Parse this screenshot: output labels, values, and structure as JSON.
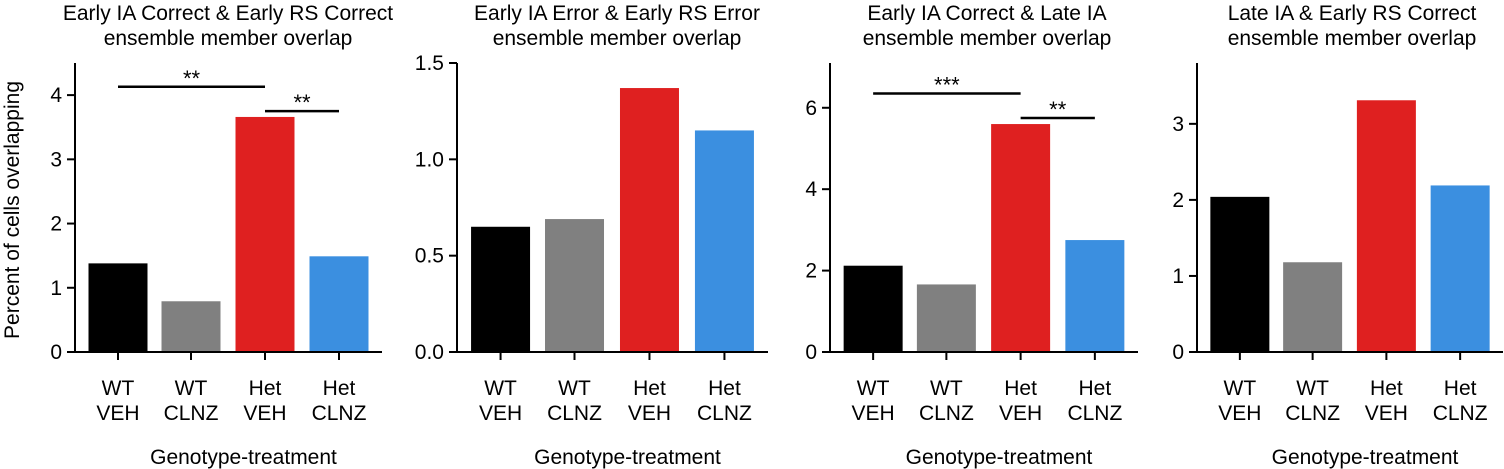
{
  "shared_ylabel": "Percent of cells overlapping",
  "chart_data": [
    {
      "type": "bar",
      "title": [
        "Early IA Correct & Early RS Correct",
        "ensemble member overlap"
      ],
      "xlabel": "Genotype-treatment",
      "categories": [
        [
          "WT",
          "VEH"
        ],
        [
          "WT",
          "CLNZ"
        ],
        [
          "Het",
          "VEH"
        ],
        [
          "Het",
          "CLNZ"
        ]
      ],
      "values": [
        1.38,
        0.79,
        3.66,
        1.49
      ],
      "colors": [
        "#000000",
        "#808080",
        "#df2020",
        "#3b8fe0"
      ],
      "ylim": [
        0,
        4.5
      ],
      "yticks": [
        0,
        1,
        2,
        3,
        4
      ],
      "ytick_labels": [
        "0",
        "1",
        "2",
        "3",
        "4"
      ],
      "significance": [
        {
          "from": 0,
          "to": 2,
          "level": 4.13,
          "label": "**"
        },
        {
          "from": 2,
          "to": 3,
          "level": 3.75,
          "label": "**"
        }
      ]
    },
    {
      "type": "bar",
      "title": [
        "Early IA Error & Early RS Error",
        "ensemble member overlap"
      ],
      "xlabel": "Genotype-treatment",
      "categories": [
        [
          "WT",
          "VEH"
        ],
        [
          "WT",
          "CLNZ"
        ],
        [
          "Het",
          "VEH"
        ],
        [
          "Het",
          "CLNZ"
        ]
      ],
      "values": [
        0.65,
        0.69,
        1.37,
        1.15
      ],
      "colors": [
        "#000000",
        "#808080",
        "#df2020",
        "#3b8fe0"
      ],
      "ylim": [
        0,
        1.5
      ],
      "yticks": [
        0,
        0.5,
        1.0,
        1.5
      ],
      "ytick_labels": [
        "0.0",
        "0.5",
        "1.0",
        "1.5"
      ],
      "significance": []
    },
    {
      "type": "bar",
      "title": [
        "Early IA Correct & Late IA",
        "ensemble member overlap"
      ],
      "xlabel": "Genotype-treatment",
      "categories": [
        [
          "WT",
          "VEH"
        ],
        [
          "WT",
          "CLNZ"
        ],
        [
          "Het",
          "VEH"
        ],
        [
          "Het",
          "CLNZ"
        ]
      ],
      "values": [
        2.12,
        1.66,
        5.6,
        2.75
      ],
      "colors": [
        "#000000",
        "#808080",
        "#df2020",
        "#3b8fe0"
      ],
      "ylim": [
        0,
        7.1
      ],
      "yticks": [
        0,
        2,
        4,
        6
      ],
      "ytick_labels": [
        "0",
        "2",
        "4",
        "6"
      ],
      "significance": [
        {
          "from": 0,
          "to": 2,
          "level": 6.35,
          "label": "***"
        },
        {
          "from": 2,
          "to": 3,
          "level": 5.75,
          "label": "**"
        }
      ]
    },
    {
      "type": "bar",
      "title": [
        "Late IA & Early RS Correct",
        "ensemble member overlap"
      ],
      "xlabel": "Genotype-treatment",
      "categories": [
        [
          "WT",
          "VEH"
        ],
        [
          "WT",
          "CLNZ"
        ],
        [
          "Het",
          "VEH"
        ],
        [
          "Het",
          "CLNZ"
        ]
      ],
      "values": [
        2.04,
        1.18,
        3.31,
        2.19
      ],
      "colors": [
        "#000000",
        "#808080",
        "#df2020",
        "#3b8fe0"
      ],
      "ylim": [
        0,
        3.8
      ],
      "yticks": [
        0,
        1,
        2,
        3
      ],
      "ytick_labels": [
        "0",
        "1",
        "2",
        "3"
      ],
      "significance": []
    }
  ]
}
